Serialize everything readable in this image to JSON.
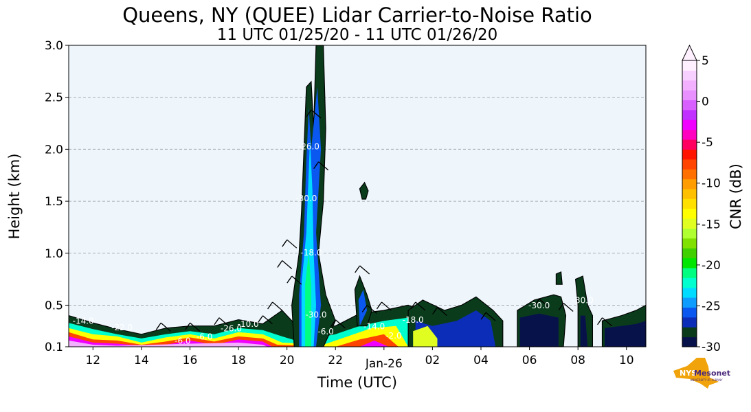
{
  "chart_data": {
    "type": "heatmap",
    "title": "Queens, NY (QUEE) Lidar Carrier-to-Noise Ratio",
    "subtitle": "11 UTC 01/25/20 - 11 UTC 01/26/20",
    "xlabel": "Time (UTC)",
    "ylabel": "Height (km)",
    "x_hours_range": [
      11,
      34.8
    ],
    "x_ticks": [
      {
        "hour": 12,
        "label": "12"
      },
      {
        "hour": 14,
        "label": "14"
      },
      {
        "hour": 16,
        "label": "16"
      },
      {
        "hour": 18,
        "label": "18"
      },
      {
        "hour": 20,
        "label": "20"
      },
      {
        "hour": 22,
        "label": "22"
      },
      {
        "hour": 26,
        "label": "02"
      },
      {
        "hour": 28,
        "label": "04"
      },
      {
        "hour": 30,
        "label": "06"
      },
      {
        "hour": 32,
        "label": "08"
      },
      {
        "hour": 34,
        "label": "10"
      }
    ],
    "date_marker": {
      "hour": 24,
      "label": "Jan-26"
    },
    "ylim": [
      0.1,
      3.0
    ],
    "y_ticks": [
      {
        "value": 0.1,
        "label": "0.1"
      },
      {
        "value": 0.5,
        "label": "0.5"
      },
      {
        "value": 1.0,
        "label": "1.0"
      },
      {
        "value": 1.5,
        "label": "1.5"
      },
      {
        "value": 2.0,
        "label": "2.0"
      },
      {
        "value": 2.5,
        "label": "2.5"
      },
      {
        "value": 3.0,
        "label": "3.0"
      }
    ],
    "grid_y": true,
    "background_color": "#eef6fc",
    "colorbar": {
      "label": "CNR (dB)",
      "range": [
        -30,
        5
      ],
      "extend": "max",
      "ticks": [
        {
          "value": 5,
          "label": "5"
        },
        {
          "value": 0,
          "label": "0"
        },
        {
          "value": -5,
          "label": "-5"
        },
        {
          "value": -10,
          "label": "-10"
        },
        {
          "value": -15,
          "label": "-15"
        },
        {
          "value": -20,
          "label": "-20"
        },
        {
          "value": -25,
          "label": "-25"
        },
        {
          "value": -30,
          "label": "-30"
        }
      ],
      "colors": [
        "#08124a",
        "#0a3c1c",
        "#0b2db8",
        "#0a58f0",
        "#0f9cff",
        "#00dcff",
        "#00ffcf",
        "#00ff80",
        "#00e600",
        "#40d000",
        "#80e000",
        "#b0ff30",
        "#e0ff20",
        "#ffff00",
        "#ffe000",
        "#ffc000",
        "#ff9c00",
        "#ff7000",
        "#ff4400",
        "#ff1400",
        "#ff0060",
        "#ff00c0",
        "#f000ff",
        "#c030ff",
        "#d860ff",
        "#e890ff",
        "#f2b0ff",
        "#f8d0ff",
        "#fff0ff"
      ]
    },
    "contour_labels": [
      {
        "hour": 11.6,
        "km": 0.32,
        "text": "-14.0"
      },
      {
        "hour": 13.2,
        "km": 0.26,
        "text": "-22.0"
      },
      {
        "hour": 15.7,
        "km": 0.13,
        "text": "-6.0"
      },
      {
        "hour": 16.6,
        "km": 0.17,
        "text": "-6.0"
      },
      {
        "hour": 17.7,
        "km": 0.25,
        "text": "-26.0"
      },
      {
        "hour": 18.4,
        "km": 0.29,
        "text": "-10.0"
      },
      {
        "hour": 20.9,
        "km": 2.0,
        "text": "-26.0"
      },
      {
        "hour": 20.8,
        "km": 1.5,
        "text": "-30.0"
      },
      {
        "hour": 21.0,
        "km": 0.98,
        "text": "-18.0"
      },
      {
        "hour": 21.2,
        "km": 0.38,
        "text": "-30.0"
      },
      {
        "hour": 21.6,
        "km": 0.22,
        "text": "-6.0"
      },
      {
        "hour": 23.6,
        "km": 0.27,
        "text": "-14.0"
      },
      {
        "hour": 24.4,
        "km": 0.18,
        "text": "-2.0"
      },
      {
        "hour": 25.2,
        "km": 0.33,
        "text": "-18.0"
      },
      {
        "hour": 30.4,
        "km": 0.47,
        "text": "-30.0"
      },
      {
        "hour": 32.2,
        "km": 0.52,
        "text": "-30.0"
      }
    ],
    "logo": {
      "text_main": "NYS",
      "text_brand": "Mesonet",
      "text_sub": "UNIVERSITY AT ALBANY"
    }
  }
}
